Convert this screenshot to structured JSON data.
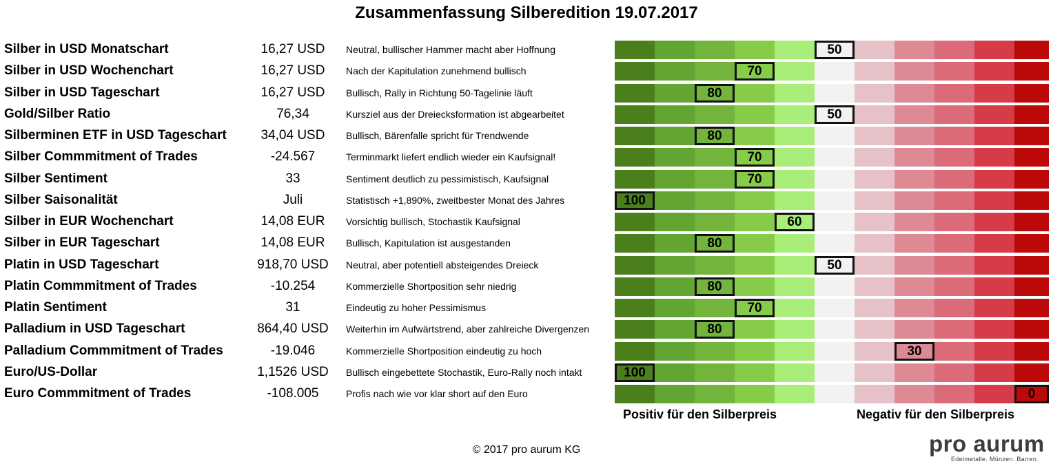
{
  "title": "Zusammenfassung Silberedition 19.07.2017",
  "chart_data": {
    "type": "table",
    "title": "Zusammenfassung Silberedition 19.07.2017",
    "scale": [
      100,
      90,
      80,
      70,
      60,
      50,
      40,
      30,
      20,
      10,
      0
    ],
    "scale_colors": [
      "#4a7f1c",
      "#62a532",
      "#72b43c",
      "#86cc48",
      "#a8ee78",
      "#f2f2f2",
      "#e6c2c8",
      "#dd8a95",
      "#db6b78",
      "#d63c47",
      "#bc0a0a"
    ],
    "marker_color": "#111111",
    "rows": [
      {
        "label": "Silber in USD Monatschart",
        "value": "16,27 USD",
        "comment": "Neutral, bullischer Hammer macht aber Hoffnung",
        "score": 50
      },
      {
        "label": "Silber in USD Wochenchart",
        "value": "16,27 USD",
        "comment": "Nach der Kapitulation zunehmend bullisch",
        "score": 70
      },
      {
        "label": "Silber in USD Tageschart",
        "value": "16,27 USD",
        "comment": "Bullisch, Rally in Richtung 50-Tagelinie läuft",
        "score": 80
      },
      {
        "label": "Gold/Silber Ratio",
        "value": "76,34",
        "comment": "Kursziel aus der Dreiecksformation ist abgearbeitet",
        "score": 50
      },
      {
        "label": "Silberminen ETF in USD Tageschart",
        "value": "34,04 USD",
        "comment": "Bullisch, Bärenfalle spricht für Trendwende",
        "score": 80
      },
      {
        "label": "Silber Commmitment of Trades",
        "value": "-24.567",
        "comment": "Terminmarkt liefert endlich wieder ein Kaufsignal!",
        "score": 70
      },
      {
        "label": "Silber Sentiment",
        "value": "33",
        "comment": "Sentiment deutlich zu pessimistisch, Kaufsignal",
        "score": 70
      },
      {
        "label": "Silber Saisonalität",
        "value": "Juli",
        "comment": "Statistisch +1,890%, zweitbester Monat des Jahres",
        "score": 100
      },
      {
        "label": "Silber in EUR Wochenchart",
        "value": "14,08 EUR",
        "comment": "Vorsichtig bullisch, Stochastik Kaufsignal",
        "score": 60
      },
      {
        "label": "Silber in EUR Tageschart",
        "value": "14,08 EUR",
        "comment": "Bullisch, Kapitulation ist ausgestanden",
        "score": 80
      },
      {
        "label": "Platin in USD Tageschart",
        "value": "918,70 USD",
        "comment": "Neutral, aber potentiell absteigendes Dreieck",
        "score": 50
      },
      {
        "label": "Platin Commmitment of Trades",
        "value": "-10.254",
        "comment": "Kommerzielle Shortposition sehr niedrig",
        "score": 80
      },
      {
        "label": "Platin Sentiment",
        "value": "31",
        "comment": "Eindeutig zu hoher Pessimismus",
        "score": 70
      },
      {
        "label": "Palladium in USD Tageschart",
        "value": "864,40 USD",
        "comment": "Weiterhin im Aufwärtstrend, aber zahlreiche Divergenzen",
        "score": 80
      },
      {
        "label": "Palladium Commmitment of Trades",
        "value": "-19.046",
        "comment": "Kommerzielle Shortposition eindeutig zu hoch",
        "score": 30
      },
      {
        "label": "Euro/US-Dollar",
        "value": "1,1526 USD",
        "comment": "Bullisch eingebettete Stochastik, Euro-Rally noch intakt",
        "score": 100
      },
      {
        "label": "Euro Commmitment of Trades",
        "value": "-108.005",
        "comment": "Profis nach wie vor klar short auf den Euro",
        "score": 0
      }
    ],
    "positive_label": "Positiv für den Silberpreis",
    "negative_label": "Negativ für den Silberpreis"
  },
  "footer": {
    "copyright": "© 2017 pro aurum KG"
  },
  "logo": {
    "name": "pro aurum",
    "tagline": "Edelmetalle. Münzen. Barren."
  }
}
